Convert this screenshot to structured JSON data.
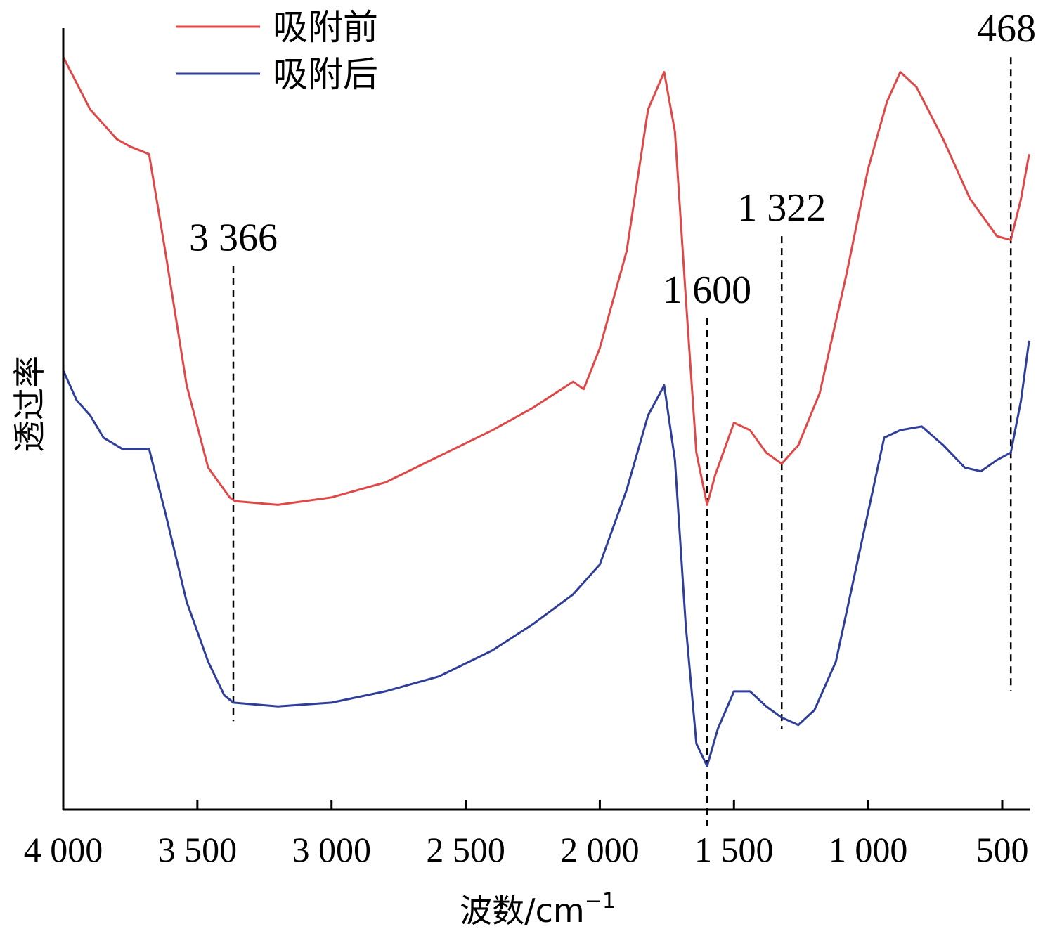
{
  "chart_data": {
    "type": "line",
    "xlabel": "波数/cm",
    "xlabel_sup": "−1",
    "ylabel": "透过率",
    "xlim": [
      4000,
      400
    ],
    "x_reversed": true,
    "xticks": [
      {
        "value": 4000,
        "label": "4 000"
      },
      {
        "value": 3500,
        "label": "3 500"
      },
      {
        "value": 3000,
        "label": "3 000"
      },
      {
        "value": 2500,
        "label": "2 500"
      },
      {
        "value": 2000,
        "label": "2 000"
      },
      {
        "value": 1500,
        "label": "1 500"
      },
      {
        "value": 1000,
        "label": "1 000"
      },
      {
        "value": 500,
        "label": "500"
      }
    ],
    "ylim": [
      0,
      100
    ],
    "grid": false,
    "legend_position": "top-left",
    "series": [
      {
        "name": "吸附前",
        "color": "#e04848",
        "points": [
          [
            4000,
            98
          ],
          [
            3900,
            91
          ],
          [
            3800,
            87
          ],
          [
            3750,
            86
          ],
          [
            3680,
            85
          ],
          [
            3620,
            72
          ],
          [
            3540,
            54
          ],
          [
            3460,
            43
          ],
          [
            3380,
            39
          ],
          [
            3360,
            38.5
          ],
          [
            3200,
            38
          ],
          [
            3000,
            39
          ],
          [
            2800,
            41
          ],
          [
            2600,
            44.5
          ],
          [
            2400,
            48
          ],
          [
            2250,
            51
          ],
          [
            2100,
            54.5
          ],
          [
            2060,
            53.5
          ],
          [
            2000,
            59
          ],
          [
            1900,
            72
          ],
          [
            1820,
            91
          ],
          [
            1760,
            96
          ],
          [
            1720,
            88
          ],
          [
            1680,
            66
          ],
          [
            1640,
            45
          ],
          [
            1600,
            38
          ],
          [
            1570,
            42
          ],
          [
            1500,
            49
          ],
          [
            1440,
            48
          ],
          [
            1380,
            45
          ],
          [
            1322,
            43.5
          ],
          [
            1260,
            46
          ],
          [
            1180,
            53
          ],
          [
            1080,
            69
          ],
          [
            1000,
            83
          ],
          [
            930,
            92
          ],
          [
            880,
            96
          ],
          [
            820,
            94
          ],
          [
            720,
            87
          ],
          [
            620,
            79
          ],
          [
            520,
            74
          ],
          [
            468,
            73.5
          ],
          [
            430,
            79
          ],
          [
            400,
            85
          ]
        ]
      },
      {
        "name": "吸附后",
        "color": "#2e3e9a",
        "points": [
          [
            4000,
            56
          ],
          [
            3950,
            52
          ],
          [
            3900,
            50
          ],
          [
            3850,
            47
          ],
          [
            3780,
            45.5
          ],
          [
            3680,
            45.5
          ],
          [
            3620,
            37
          ],
          [
            3540,
            25
          ],
          [
            3460,
            17
          ],
          [
            3400,
            12.5
          ],
          [
            3366,
            11.5
          ],
          [
            3200,
            11
          ],
          [
            3000,
            11.5
          ],
          [
            2800,
            13
          ],
          [
            2600,
            15
          ],
          [
            2400,
            18.5
          ],
          [
            2250,
            22
          ],
          [
            2100,
            26
          ],
          [
            2000,
            30
          ],
          [
            1900,
            40
          ],
          [
            1820,
            50
          ],
          [
            1760,
            54
          ],
          [
            1720,
            44
          ],
          [
            1680,
            22
          ],
          [
            1640,
            6
          ],
          [
            1600,
            3
          ],
          [
            1560,
            8
          ],
          [
            1500,
            13
          ],
          [
            1440,
            13
          ],
          [
            1380,
            11
          ],
          [
            1322,
            9.5
          ],
          [
            1260,
            8.5
          ],
          [
            1200,
            10.5
          ],
          [
            1120,
            17
          ],
          [
            1000,
            37
          ],
          [
            940,
            47
          ],
          [
            880,
            48
          ],
          [
            800,
            48.5
          ],
          [
            720,
            46
          ],
          [
            640,
            43
          ],
          [
            580,
            42.5
          ],
          [
            520,
            44
          ],
          [
            468,
            45
          ],
          [
            430,
            52
          ],
          [
            400,
            60
          ]
        ]
      }
    ],
    "annotations": [
      {
        "x": 3366,
        "label": "3 366",
        "y_top": 70,
        "y_bottom": 9
      },
      {
        "x": 1600,
        "label": "1 600",
        "y_top": 63,
        "y_bottom": -5
      },
      {
        "x": 1322,
        "label": "1 322",
        "y_top": 74,
        "y_bottom": 8
      },
      {
        "x": 468,
        "label": "468",
        "y_top": 98,
        "y_bottom": 13
      }
    ]
  }
}
